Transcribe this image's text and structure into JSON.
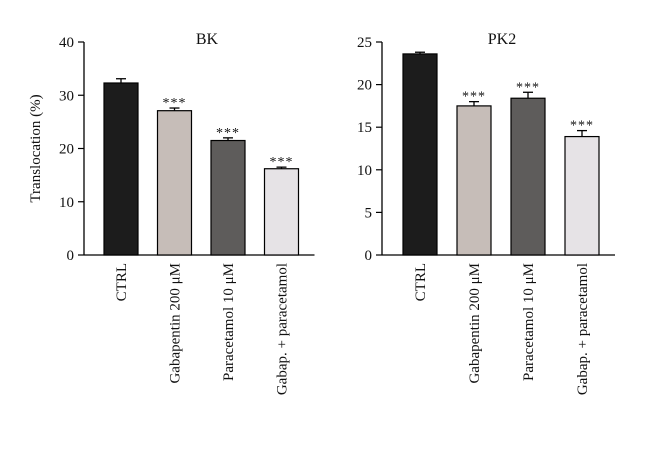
{
  "chart_data": [
    {
      "type": "bar",
      "title": "BK",
      "ylabel": "Translocation (%)",
      "xlabel": "",
      "ylim": [
        0,
        40
      ],
      "yticks": [
        0,
        10,
        20,
        30,
        40
      ],
      "categories": [
        "CTRL",
        "Gabapentin 200 μM",
        "Paracetamol 10 μM",
        "Gabap. + paracetamol"
      ],
      "values": [
        32.3,
        27.1,
        21.5,
        16.2
      ],
      "errors": [
        0.8,
        0.5,
        0.5,
        0.3
      ],
      "significance": [
        "",
        "***",
        "***",
        "***"
      ],
      "colors": [
        "#1c1c1c",
        "#c6bdb8",
        "#5e5c5b",
        "#e6e3e6"
      ]
    },
    {
      "type": "bar",
      "title": "PK2",
      "ylabel": "",
      "xlabel": "",
      "ylim": [
        0,
        25
      ],
      "yticks": [
        0,
        5,
        10,
        15,
        20,
        25
      ],
      "categories": [
        "CTRL",
        "Gabapentin 200 μM",
        "Paracetamol 10 μM",
        "Gabap. + paracetamol"
      ],
      "values": [
        23.6,
        17.5,
        18.4,
        13.9
      ],
      "errors": [
        0.2,
        0.5,
        0.7,
        0.7
      ],
      "significance": [
        "",
        "***",
        "***",
        "***"
      ],
      "colors": [
        "#1c1c1c",
        "#c6bdb8",
        "#5e5c5b",
        "#e6e3e6"
      ]
    }
  ]
}
